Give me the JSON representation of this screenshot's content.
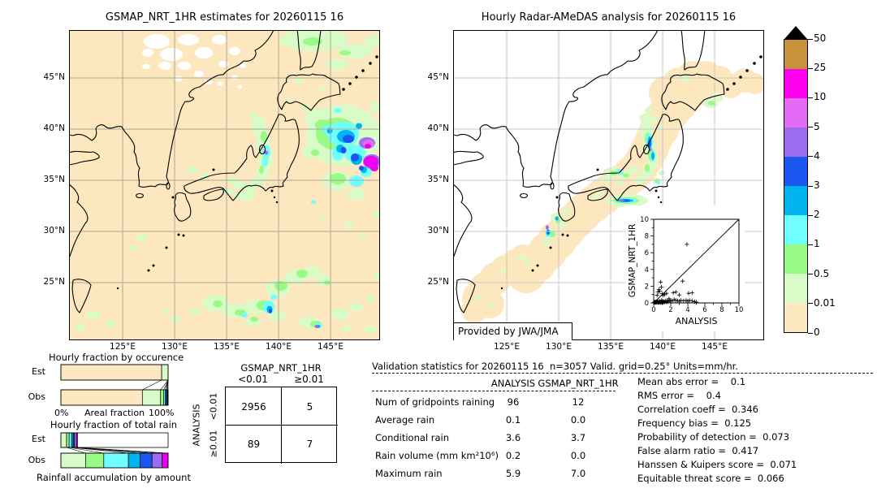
{
  "maps": {
    "lat_ticks": [
      "45°N",
      "40°N",
      "35°N",
      "30°N",
      "25°N"
    ],
    "lon_ticks": [
      "125°E",
      "130°E",
      "135°E",
      "140°E",
      "145°E"
    ],
    "left": {
      "title": "GSMAP_NRT_1HR estimates for 20260115 16"
    },
    "right": {
      "title": "Hourly Radar-AMeDAS analysis for 20260115 16",
      "credit": "Provided by JWA/JMA"
    }
  },
  "colorbar": {
    "labels": [
      "50",
      "25",
      "10",
      "5",
      "4",
      "3",
      "2",
      "1",
      "0.5",
      "0.01",
      "0"
    ],
    "colors": [
      "#c8923c",
      "#ff00f0",
      "#e36bf5",
      "#9b6df0",
      "#1a56f0",
      "#00b4f0",
      "#70ffff",
      "#98fb84",
      "#d8fbc8",
      "#fde7be"
    ],
    "overflow_color": "#000000",
    "units": "mm/hr"
  },
  "chart_data": [
    {
      "type": "bar",
      "name": "hourly-fraction-by-occurrence",
      "title": "Hourly fraction by occurence",
      "xlabel": "Areal fraction",
      "x_tick_labels": [
        "0%",
        "100%"
      ],
      "row_labels": [
        "Est",
        "Obs"
      ],
      "bins_mm_hr": [
        "0-0.01",
        "0.01-0.5",
        "0.5-1",
        "1-2",
        "2-3",
        "3-4",
        "≥4"
      ],
      "bin_colors": [
        "#fde7be",
        "#d8fbc8",
        "#98fb84",
        "#70ffff",
        "#00b4f0",
        "#1a56f0",
        "#9b6df0"
      ],
      "series": [
        {
          "name": "Est",
          "values_pct": [
            94,
            6,
            0,
            0,
            0,
            0,
            0
          ]
        },
        {
          "name": "Obs",
          "values_pct": [
            76,
            17,
            3,
            1.5,
            1,
            0.8,
            0.7
          ]
        }
      ]
    },
    {
      "type": "bar",
      "name": "hourly-fraction-of-total-rain",
      "title": "Hourly fraction of total rain",
      "xlabel": "Rainfall accumulation by amount",
      "row_labels": [
        "Est",
        "Obs"
      ],
      "bins_mm_hr": [
        "0.01-0.5",
        "0.5-1",
        "1-2",
        "2-3",
        "3-4",
        "4-5",
        "≥5"
      ],
      "bin_colors": [
        "#d8fbc8",
        "#98fb84",
        "#70ffff",
        "#00b4f0",
        "#1a56f0",
        "#9b6df0",
        "#f000f0"
      ],
      "series": [
        {
          "name": "Est",
          "values_pct": [
            5.3,
            2.4,
            2.3,
            1.5,
            1.0,
            2.0,
            1.0
          ]
        },
        {
          "name": "Obs",
          "values_pct": [
            23,
            17,
            23,
            11,
            11,
            9.5,
            5.5
          ]
        }
      ]
    },
    {
      "type": "scatter",
      "name": "inset-scatter",
      "xlabel": "ANALYSIS",
      "ylabel": "GSMAP_NRT_1HR",
      "xlim": [
        0,
        10
      ],
      "ylim": [
        0,
        10
      ],
      "major_ticks": [
        0,
        2,
        4,
        6,
        8,
        10
      ],
      "diagonal": true,
      "marker": "+",
      "points": [
        [
          0.05,
          0.05
        ],
        [
          0.1,
          0.1
        ],
        [
          0.15,
          0.05
        ],
        [
          0.2,
          0.12
        ],
        [
          0.25,
          0.05
        ],
        [
          0.3,
          0.15
        ],
        [
          0.35,
          0.05
        ],
        [
          0.4,
          0.1
        ],
        [
          0.45,
          0.2
        ],
        [
          0.5,
          0.05
        ],
        [
          0.55,
          0.15
        ],
        [
          0.6,
          0.1
        ],
        [
          0.65,
          0.05
        ],
        [
          0.7,
          0.2
        ],
        [
          0.75,
          0.1
        ],
        [
          0.8,
          0.05
        ],
        [
          0.85,
          0.15
        ],
        [
          0.9,
          0.1
        ],
        [
          0.95,
          0.3
        ],
        [
          1.0,
          0.1
        ],
        [
          1.05,
          0.2
        ],
        [
          1.1,
          0.05
        ],
        [
          1.2,
          0.15
        ],
        [
          1.3,
          0.1
        ],
        [
          1.4,
          0.25
        ],
        [
          1.5,
          0.1
        ],
        [
          1.6,
          0.3
        ],
        [
          1.7,
          0.15
        ],
        [
          1.8,
          0.5
        ],
        [
          1.9,
          0.2
        ],
        [
          2.0,
          0.3
        ],
        [
          2.2,
          0.25
        ],
        [
          2.4,
          0.4
        ],
        [
          2.6,
          0.3
        ],
        [
          2.8,
          0.25
        ],
        [
          3.0,
          0.2
        ],
        [
          3.2,
          0.3
        ],
        [
          3.5,
          0.25
        ],
        [
          3.8,
          0.3
        ],
        [
          4.0,
          0.2
        ],
        [
          4.2,
          0.3
        ],
        [
          4.5,
          0.25
        ],
        [
          4.8,
          0.15
        ],
        [
          5.0,
          0.1
        ],
        [
          0.4,
          0.9
        ],
        [
          0.5,
          1.3
        ],
        [
          0.6,
          1.6
        ],
        [
          0.7,
          1.4
        ],
        [
          0.8,
          2.5
        ],
        [
          0.9,
          1.9
        ],
        [
          1.0,
          1.1
        ],
        [
          1.1,
          0.9
        ],
        [
          1.3,
          1.0
        ],
        [
          1.5,
          1.15
        ],
        [
          2.3,
          1.2
        ],
        [
          2.6,
          1.3
        ],
        [
          3.0,
          0.95
        ],
        [
          3.4,
          2.6
        ],
        [
          3.9,
          7.0
        ],
        [
          4.1,
          1.15
        ],
        [
          4.5,
          1.2
        ]
      ]
    },
    {
      "type": "table",
      "name": "contingency-table",
      "title": "GSMAP_NRT_1HR",
      "row_axis": "ANALYSIS",
      "col_labels": [
        "<0.01",
        "≥0.01"
      ],
      "row_labels": [
        "<0.01",
        "≥0.01"
      ],
      "values": [
        [
          "2956",
          "5"
        ],
        [
          "89",
          "7"
        ]
      ]
    },
    {
      "type": "table",
      "name": "validation-statistics",
      "title": "Validation statistics for 20260115 16  n=3057 Valid. grid=0.25° Units=mm/hr.",
      "col_headers": [
        "ANALYSIS",
        "GSMAP_NRT_1HR"
      ],
      "rows": [
        {
          "label": "Num of gridpoints raining",
          "values": [
            "96",
            "12"
          ]
        },
        {
          "label": "Average rain",
          "values": [
            "0.1",
            "0.0"
          ]
        },
        {
          "label": "Conditional rain",
          "values": [
            "3.6",
            "3.7"
          ]
        },
        {
          "label": "Rain volume (mm km²10⁶)",
          "values": [
            "0.2",
            "0.0"
          ]
        },
        {
          "label": "Maximum rain",
          "values": [
            "5.9",
            "7.0"
          ]
        }
      ],
      "summary": [
        "Mean abs error =    0.1",
        "RMS error =    0.4",
        "Correlation coeff =  0.346",
        "Frequency bias =  0.125",
        "Probability of detection =  0.073",
        "False alarm ratio =  0.417",
        "Hanssen & Kuipers score =  0.071",
        "Equitable threat score =  0.066"
      ]
    }
  ]
}
